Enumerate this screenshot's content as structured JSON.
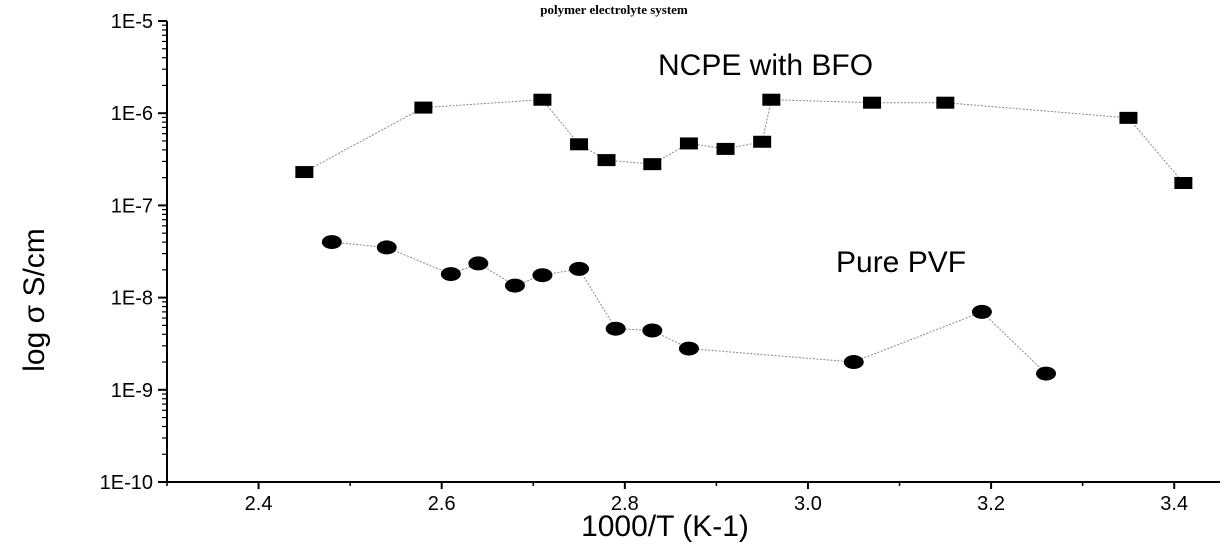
{
  "caption": "polymer electrolyte system",
  "chart_data": {
    "type": "scatter",
    "title": "",
    "xlabel": "1000/T (K-1)",
    "ylabel": "log σ S/cm",
    "xlim": [
      2.3,
      3.45
    ],
    "ylim": [
      1e-10,
      1e-05
    ],
    "yscale": "log",
    "x_ticks": [
      2.4,
      2.6,
      2.8,
      3.0,
      3.2,
      3.4
    ],
    "x_tick_labels": [
      "2.4",
      "2.6",
      "2.8",
      "3.0",
      "3.2",
      "3.4"
    ],
    "y_ticks": [
      1e-10,
      1e-09,
      1e-08,
      1e-07,
      1e-06,
      1e-05
    ],
    "y_tick_labels": [
      "1E-10",
      "1E-9",
      "1E-8",
      "1E-7",
      "1E-6",
      "1E-5"
    ],
    "grid": false,
    "series": [
      {
        "name": "NCPE with BFO",
        "marker": "square",
        "x": [
          2.45,
          2.58,
          2.71,
          2.75,
          2.78,
          2.83,
          2.87,
          2.91,
          2.95,
          2.96,
          3.07,
          3.15,
          3.35,
          3.41
        ],
        "y": [
          2.3e-07,
          1.15e-06,
          1.4e-06,
          4.6e-07,
          3.1e-07,
          2.8e-07,
          4.7e-07,
          4.1e-07,
          4.9e-07,
          1.4e-06,
          1.3e-06,
          1.3e-06,
          8.9e-07,
          1.75e-07
        ]
      },
      {
        "name": "Pure PVF",
        "marker": "circle",
        "x": [
          2.48,
          2.54,
          2.61,
          2.64,
          2.68,
          2.71,
          2.75,
          2.79,
          2.83,
          2.87,
          3.05,
          3.19,
          3.26
        ],
        "y": [
          4e-08,
          3.5e-08,
          1.8e-08,
          2.35e-08,
          1.35e-08,
          1.75e-08,
          2.05e-08,
          4.6e-09,
          4.4e-09,
          2.8e-09,
          2e-09,
          7e-09,
          1.5e-09
        ]
      }
    ],
    "annotations": [
      "NCPE with BFO",
      "Pure PVF"
    ]
  }
}
